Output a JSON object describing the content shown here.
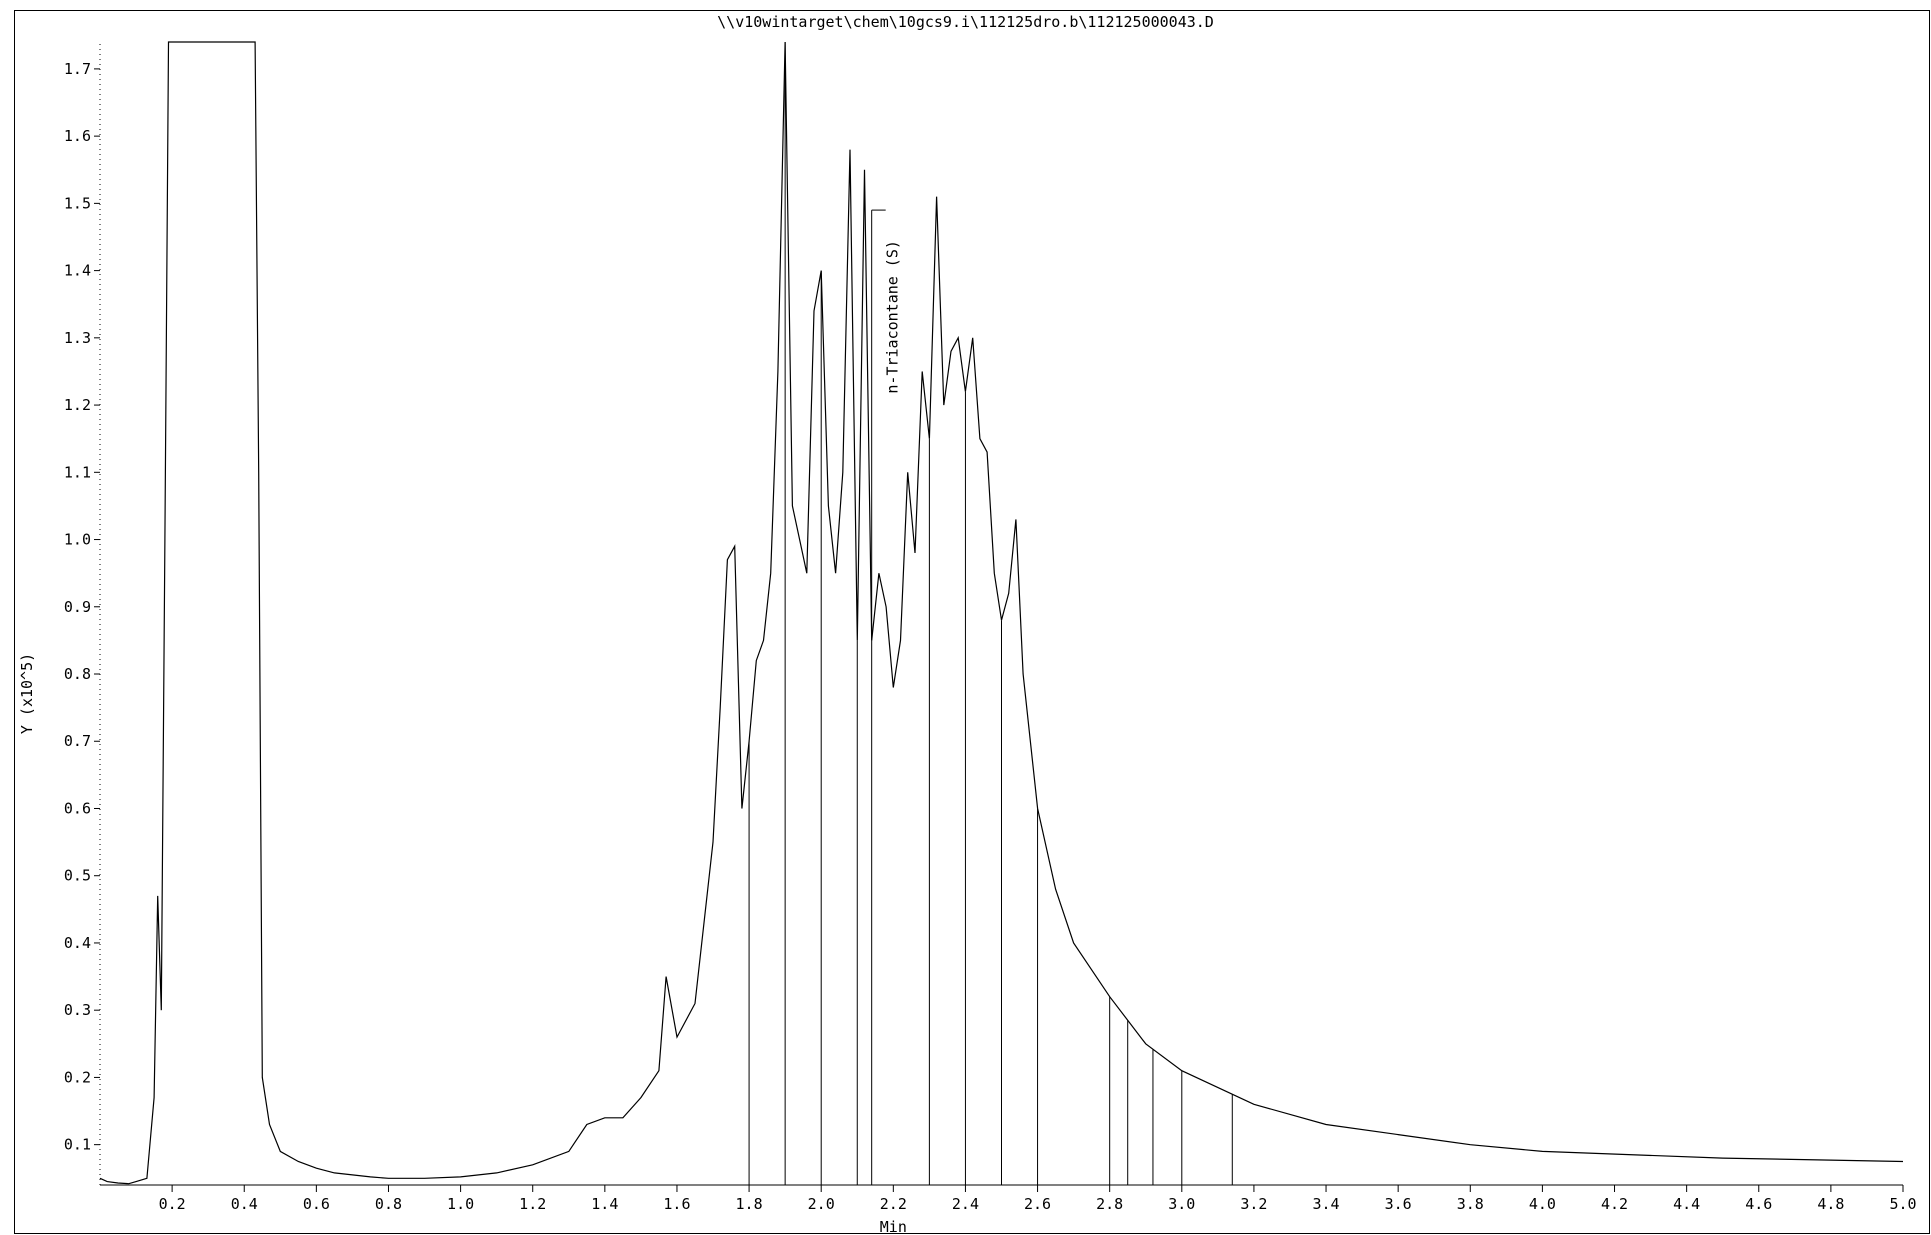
{
  "title": "\\\\v10wintarget\\chem\\10gcs9.i\\112125dro.b\\112125000043.D",
  "chart_data": {
    "type": "line",
    "title": "\\\\v10wintarget\\chem\\10gcs9.i\\112125dro.b\\112125000043.D",
    "xlabel": "Min",
    "ylabel": "Y (x10^5)",
    "xlim": [
      0.0,
      5.0
    ],
    "ylim": [
      0.04,
      1.74
    ],
    "x_ticks": [
      "0.2",
      "0.4",
      "0.6",
      "0.8",
      "1.0",
      "1.2",
      "1.4",
      "1.6",
      "1.8",
      "2.0",
      "2.2",
      "2.4",
      "2.6",
      "2.8",
      "3.0",
      "3.2",
      "3.4",
      "3.6",
      "3.8",
      "4.0",
      "4.2",
      "4.4",
      "4.6",
      "4.8",
      "5.0"
    ],
    "y_ticks": [
      "0.1",
      "0.2",
      "0.3",
      "0.4",
      "0.5",
      "0.6",
      "0.7",
      "0.8",
      "0.9",
      "1.0",
      "1.1",
      "1.2",
      "1.3",
      "1.4",
      "1.5",
      "1.6",
      "1.7"
    ],
    "grid": false,
    "annotations": [
      {
        "text": "n-Triacontane (S)",
        "x": 2.14,
        "y": 1.49
      }
    ],
    "series": [
      {
        "x": [
          0.0,
          0.02,
          0.05,
          0.08,
          0.1,
          0.13,
          0.15,
          0.16,
          0.17,
          0.18,
          0.19,
          0.2,
          0.22,
          0.25,
          0.3,
          0.35,
          0.4,
          0.43,
          0.44,
          0.45,
          0.47,
          0.5,
          0.55,
          0.6,
          0.65,
          0.7,
          0.75,
          0.8,
          0.9,
          1.0,
          1.1,
          1.2,
          1.3,
          1.35,
          1.4,
          1.45,
          1.5,
          1.55,
          1.57,
          1.6,
          1.65,
          1.7,
          1.72,
          1.74,
          1.76,
          1.78,
          1.8,
          1.82,
          1.84,
          1.86,
          1.88,
          1.9,
          1.92,
          1.94,
          1.96,
          1.98,
          2.0,
          2.02,
          2.04,
          2.06,
          2.08,
          2.1,
          2.12,
          2.14,
          2.16,
          2.18,
          2.2,
          2.22,
          2.24,
          2.26,
          2.28,
          2.3,
          2.32,
          2.34,
          2.36,
          2.38,
          2.4,
          2.42,
          2.44,
          2.46,
          2.48,
          2.5,
          2.52,
          2.54,
          2.56,
          2.6,
          2.65,
          2.7,
          2.8,
          2.9,
          3.0,
          3.2,
          3.4,
          3.6,
          3.8,
          4.0,
          4.5,
          5.0
        ],
        "y": [
          0.05,
          0.045,
          0.043,
          0.042,
          0.045,
          0.05,
          0.17,
          0.47,
          0.3,
          1.0,
          1.74,
          1.74,
          1.74,
          1.74,
          1.74,
          1.74,
          1.74,
          1.74,
          1.1,
          0.2,
          0.13,
          0.09,
          0.075,
          0.065,
          0.058,
          0.055,
          0.052,
          0.05,
          0.05,
          0.052,
          0.058,
          0.07,
          0.09,
          0.13,
          0.14,
          0.14,
          0.17,
          0.21,
          0.35,
          0.26,
          0.31,
          0.55,
          0.75,
          0.97,
          0.99,
          0.6,
          0.7,
          0.82,
          0.85,
          0.95,
          1.25,
          1.74,
          1.05,
          1.0,
          0.95,
          1.34,
          1.4,
          1.05,
          0.95,
          1.1,
          1.58,
          0.85,
          1.55,
          0.85,
          0.95,
          0.9,
          0.78,
          0.85,
          1.1,
          0.98,
          1.25,
          1.15,
          1.51,
          1.2,
          1.28,
          1.3,
          1.22,
          1.3,
          1.15,
          1.13,
          0.95,
          0.88,
          0.92,
          1.03,
          0.8,
          0.6,
          0.48,
          0.4,
          0.32,
          0.25,
          0.21,
          0.16,
          0.13,
          0.115,
          0.1,
          0.09,
          0.08,
          0.075
        ]
      }
    ]
  }
}
